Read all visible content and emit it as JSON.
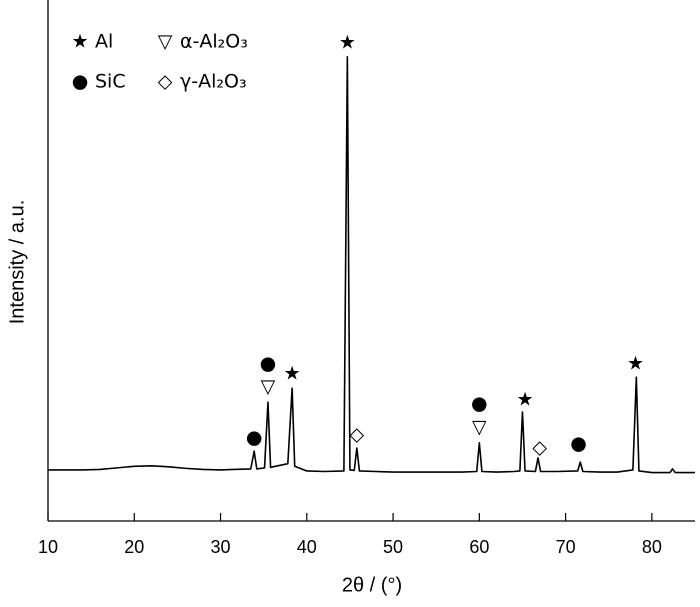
{
  "chart_data": {
    "type": "line",
    "xlabel": "2θ / (°)",
    "ylabel": "Intensity / a.u.",
    "xlim": [
      10,
      85
    ],
    "ylim": [
      0,
      100
    ],
    "xticks": [
      10,
      20,
      30,
      40,
      50,
      60,
      70,
      80
    ],
    "legend": [
      {
        "symbol": "★",
        "label": "Al"
      },
      {
        "symbol": "▽",
        "label": "α-Al₂O₃"
      },
      {
        "symbol": "●",
        "label": "SiC"
      },
      {
        "symbol": "◇",
        "label": "γ-Al₂O₃"
      }
    ],
    "series": [
      {
        "color": "#000000",
        "x": [
          10,
          12,
          14,
          16,
          18,
          20,
          22,
          24,
          26,
          28,
          30,
          31.5,
          33.5,
          33.9,
          34.2,
          35.1,
          35.5,
          35.8,
          37.8,
          38.3,
          38.6,
          40,
          42,
          44.3,
          44.7,
          45.0,
          45.5,
          45.8,
          46.1,
          48,
          50,
          52,
          54,
          56,
          58,
          59.7,
          60.0,
          60.3,
          62,
          64,
          64.7,
          65.0,
          65.3,
          66.5,
          66.8,
          67.1,
          69,
          71.4,
          71.7,
          72,
          74,
          76,
          77.8,
          78.2,
          78.5,
          80,
          82.1,
          82.4,
          82.7,
          85
        ],
        "values": [
          9.8,
          9.8,
          9.8,
          9.9,
          10.2,
          10.5,
          10.6,
          10.4,
          10.1,
          9.9,
          9.8,
          9.9,
          10.0,
          13.4,
          10.0,
          10.2,
          22.8,
          10.3,
          11.0,
          25.5,
          10.5,
          9.6,
          9.5,
          9.6,
          89.1,
          9.8,
          9.7,
          14.0,
          9.6,
          9.5,
          9.4,
          9.4,
          9.4,
          9.4,
          9.4,
          9.5,
          15.0,
          9.5,
          9.4,
          9.5,
          9.6,
          20.9,
          9.6,
          9.5,
          12.1,
          9.5,
          9.5,
          9.6,
          11.3,
          9.5,
          9.4,
          9.4,
          9.8,
          27.6,
          9.6,
          9.3,
          9.3,
          10.0,
          9.3,
          9.3
        ]
      }
    ],
    "annotations": [
      {
        "text": "★",
        "x": 44.7,
        "y": 91.7
      },
      {
        "text": "●",
        "x": 33.9,
        "y": 15.9
      },
      {
        "text": "●",
        "x": 35.5,
        "y": 30.1
      },
      {
        "text": "▽",
        "x": 35.5,
        "y": 25.7
      },
      {
        "text": "★",
        "x": 38.3,
        "y": 28.2
      },
      {
        "text": "◇",
        "x": 45.8,
        "y": 16.5
      },
      {
        "text": "●",
        "x": 60.0,
        "y": 22.5
      },
      {
        "text": "▽",
        "x": 60.0,
        "y": 17.9
      },
      {
        "text": "★",
        "x": 65.3,
        "y": 23.2
      },
      {
        "text": "◇",
        "x": 67.0,
        "y": 14.0
      },
      {
        "text": "●",
        "x": 71.5,
        "y": 14.8
      },
      {
        "text": "★",
        "x": 78.1,
        "y": 30.1
      }
    ]
  }
}
